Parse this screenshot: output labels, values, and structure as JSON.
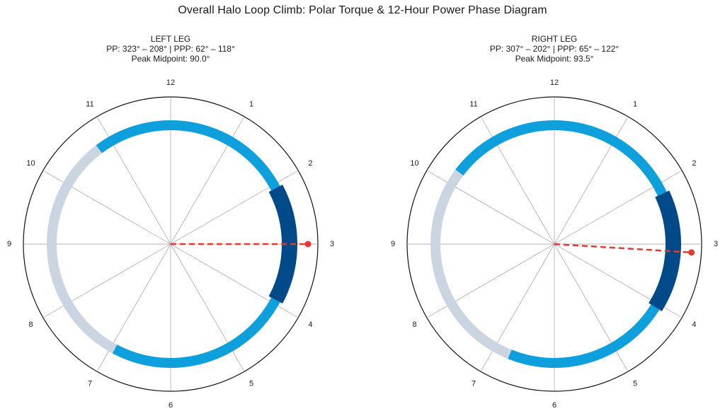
{
  "title": "Overall Halo Loop Climb: Polar Torque & 12-Hour Power Phase Diagram",
  "chart_data": [
    {
      "type": "polar-phase",
      "leg": "LEFT LEG",
      "pp_text": "PP: 323° – 208° | PPP: 62° – 118°",
      "peak_text": "Peak Midpoint: 90.0°",
      "hour_labels": [
        "12",
        "1",
        "2",
        "3",
        "4",
        "5",
        "6",
        "7",
        "8",
        "9",
        "10",
        "11"
      ],
      "power_phase": {
        "start_deg": 323,
        "end_deg": 208
      },
      "peak_power_phase": {
        "start_deg": 62,
        "end_deg": 118
      },
      "peak_midpoint_deg": 90.0,
      "background_ring": {
        "start_deg": 0,
        "end_deg": 360
      },
      "colors": {
        "background": "#cbd5e1",
        "power_phase": "#0ea0dc",
        "peak_power_phase": "#004a8a",
        "midpoint": "#e53935"
      },
      "grid": true
    },
    {
      "type": "polar-phase",
      "leg": "RIGHT LEG",
      "pp_text": "PP: 307° – 202° | PPP: 65° – 122°",
      "peak_text": "Peak Midpoint: 93.5°",
      "hour_labels": [
        "12",
        "1",
        "2",
        "3",
        "4",
        "5",
        "6",
        "7",
        "8",
        "9",
        "10",
        "11"
      ],
      "power_phase": {
        "start_deg": 307,
        "end_deg": 202
      },
      "peak_power_phase": {
        "start_deg": 65,
        "end_deg": 122
      },
      "peak_midpoint_deg": 93.5,
      "background_ring": {
        "start_deg": 0,
        "end_deg": 360
      },
      "colors": {
        "background": "#cbd5e1",
        "power_phase": "#0ea0dc",
        "peak_power_phase": "#004a8a",
        "midpoint": "#e53935"
      },
      "grid": true
    }
  ]
}
